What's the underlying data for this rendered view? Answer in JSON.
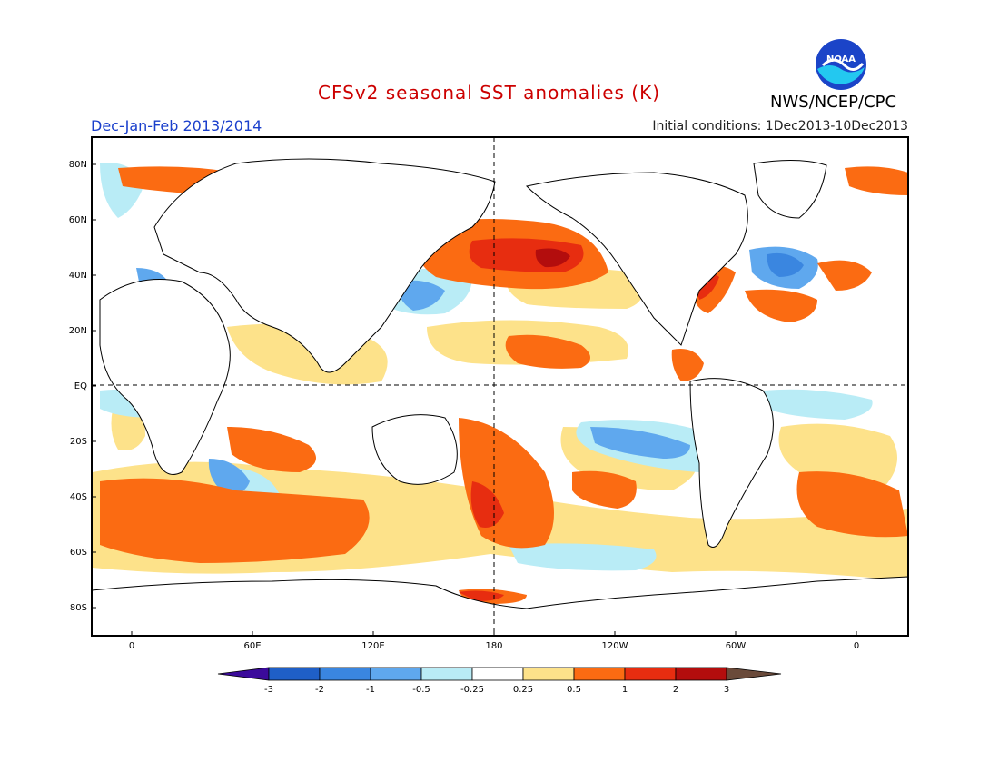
{
  "header": {
    "title": "CFSv2 seasonal SST anomalies (K)",
    "season": "Dec-Jan-Feb 2013/2014",
    "initial_conditions": "Initial conditions: 1Dec2013-10Dec2013",
    "agency": "NWS/NCEP/CPC",
    "logo_text": "NOAA"
  },
  "colors": {
    "title": "#cc0000",
    "season": "#1a3fcc",
    "land_outline": "#000000",
    "lt_neg3": "#3b0a9b",
    "neg3_neg2": "#1f5fc7",
    "neg2_neg1": "#3a86e0",
    "neg1_neg05": "#5fa8ee",
    "neg05_neg025": "#b9ecf6",
    "neutral": "#ffffff",
    "p025_p05": "#fde28a",
    "p05_p1": "#fb6b12",
    "p1_p2": "#e72d10",
    "p2_p3": "#b30d0d",
    "gt_p3": "#6a4a3a"
  },
  "map": {
    "lat_labels": [
      "80N",
      "60N",
      "40N",
      "20N",
      "EQ",
      "20S",
      "40S",
      "60S",
      "80S"
    ],
    "lon_labels": [
      "0",
      "60E",
      "120E",
      "180",
      "120W",
      "60W",
      "0"
    ]
  },
  "colorbar": {
    "labels": [
      "-3",
      "-2",
      "-1",
      "-0.5",
      "-0.25",
      "0.25",
      "0.5",
      "1",
      "2",
      "3"
    ]
  }
}
